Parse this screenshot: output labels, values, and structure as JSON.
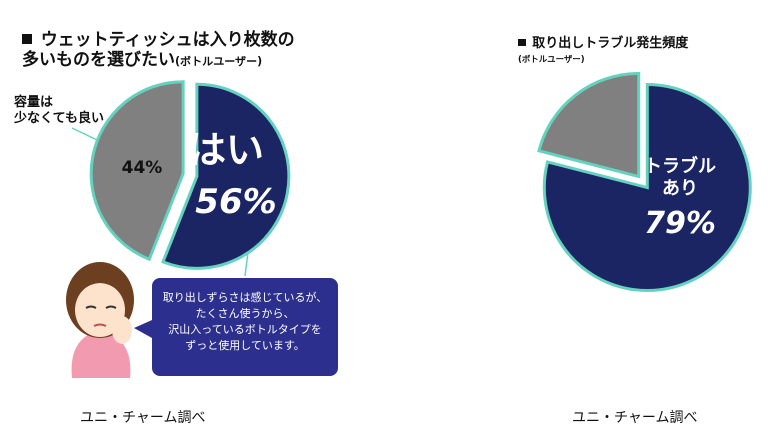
{
  "chart_data": [
    {
      "type": "pie",
      "title": "ウェットティッシュは入り枚数の\n多いものを選びたい",
      "subtitle": "(ボトルユーザー)",
      "categories": [
        "はい",
        "容量は\n少なくても良い"
      ],
      "values": [
        56,
        44
      ],
      "value_labels": [
        "56%",
        "44%"
      ],
      "colors": [
        "#1b2563",
        "#808080"
      ],
      "edge_color": "#64d2be",
      "annotation": [
        "取り出しずらさは感じているが、",
        "たくさん使うから、",
        "沢山入っているボトルタイプを",
        "ずっと使用しています。"
      ],
      "source": "ユニ・チャーム調べ"
    },
    {
      "type": "pie",
      "title": "取り出しトラブル発生頻度",
      "subtitle": "(ボトルユーザー)",
      "categories": [
        "トラブル\nあり",
        null
      ],
      "values": [
        79,
        21
      ],
      "value_labels": [
        "79%",
        null
      ],
      "colors": [
        "#1b2563",
        "#808080"
      ],
      "edge_color": "#64d2be",
      "source": "ユニ・チャーム調べ"
    }
  ]
}
